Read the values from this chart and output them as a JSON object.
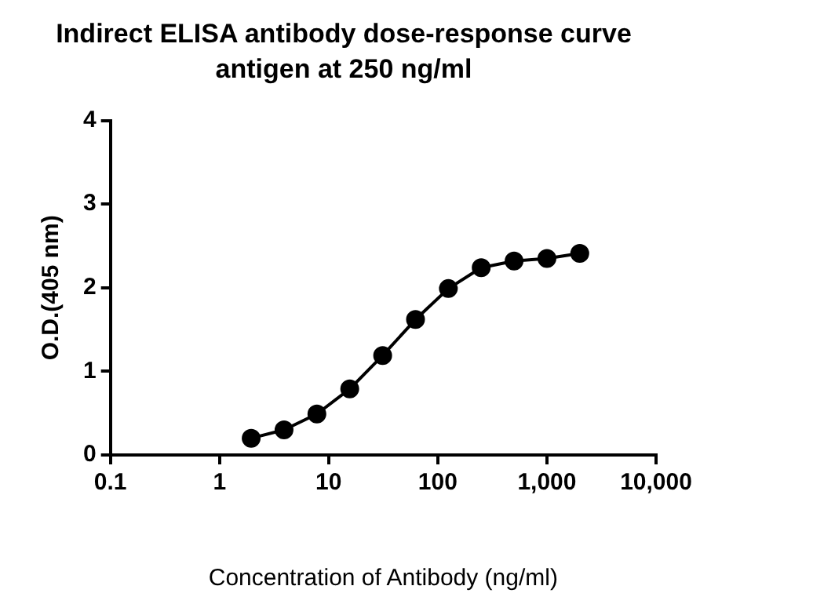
{
  "chart_data": {
    "type": "line",
    "title": "Indirect ELISA antibody dose-response curve",
    "subtitle": "antigen at 250 ng/ml",
    "xlabel": "Concentration of Antibody (ng/ml)",
    "ylabel": "O.D.(405 nm)",
    "x": [
      1.95,
      3.9,
      7.8,
      15.6,
      31.25,
      62.5,
      125,
      250,
      500,
      1000,
      2000
    ],
    "series": [
      {
        "color": "#000000",
        "values": [
          0.2,
          0.3,
          0.49,
          0.79,
          1.19,
          1.62,
          1.99,
          2.24,
          2.32,
          2.35,
          2.41
        ]
      }
    ],
    "log": "x",
    "xlim": [
      0.1,
      10000
    ],
    "xticks": [
      0.1,
      1,
      10,
      100,
      {
        "value": 1000,
        "label": "1,000"
      },
      {
        "value": 10000,
        "label": "10,000"
      }
    ],
    "ylim": [
      0,
      4
    ],
    "yticks": [
      0,
      1,
      2,
      3,
      4
    ],
    "grid": false,
    "legend": false,
    "marker": "circle",
    "line_style": "solid"
  }
}
